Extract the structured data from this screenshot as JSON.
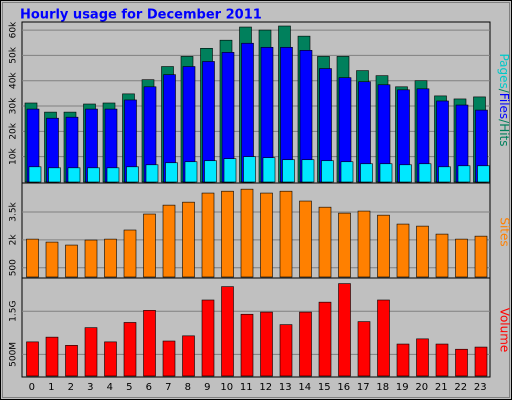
{
  "chart_data": [
    {
      "type": "bar",
      "title": "Hourly usage for December 2011",
      "categories": [
        "0",
        "1",
        "2",
        "3",
        "4",
        "5",
        "6",
        "7",
        "8",
        "9",
        "10",
        "11",
        "12",
        "13",
        "14",
        "15",
        "16",
        "17",
        "18",
        "19",
        "20",
        "21",
        "22",
        "23"
      ],
      "series": [
        {
          "name": "Hits",
          "color": "#00805c",
          "values": [
            31200,
            27600,
            27600,
            30800,
            31200,
            34800,
            40400,
            45600,
            49600,
            52800,
            56000,
            61200,
            60000,
            61600,
            57600,
            49600,
            49600,
            44000,
            42000,
            37600,
            40000,
            34000,
            32800,
            33600
          ]
        },
        {
          "name": "Files",
          "color": "#0000ff",
          "values": [
            28800,
            25200,
            25600,
            28800,
            28800,
            32400,
            37600,
            42400,
            45600,
            47600,
            51200,
            54800,
            53200,
            53200,
            52000,
            44800,
            41200,
            39600,
            38400,
            36400,
            36800,
            32000,
            30400,
            28400
          ]
        },
        {
          "name": "Pages",
          "color": "#00e8ff",
          "values": [
            6000,
            5600,
            5600,
            5600,
            5600,
            6000,
            6800,
            7600,
            8000,
            8400,
            9200,
            10000,
            9600,
            8800,
            8800,
            8400,
            8000,
            7200,
            7200,
            6800,
            7200,
            6000,
            6400,
            6400
          ]
        }
      ],
      "separator": "/",
      "ylim": [
        0,
        62000
      ],
      "yticks": [
        {
          "value": 10000,
          "label": "10k"
        },
        {
          "value": 20000,
          "label": "20k"
        },
        {
          "value": 30000,
          "label": "30k"
        },
        {
          "value": 40000,
          "label": "40k"
        },
        {
          "value": 50000,
          "label": "50k"
        },
        {
          "value": 60000,
          "label": "60k"
        }
      ],
      "grid": true
    },
    {
      "type": "bar",
      "series": [
        {
          "name": "Sites",
          "color": "#ff8000",
          "values": [
            2040,
            1880,
            1720,
            1990,
            2040,
            2530,
            3390,
            3870,
            4030,
            4520,
            4620,
            4730,
            4520,
            4620,
            4090,
            3760,
            3440,
            3550,
            3330,
            2850,
            2740,
            2310,
            2040,
            2200
          ]
        }
      ],
      "ylim": [
        0,
        4900
      ],
      "yticks": [
        500,
        {
          "value": 2000,
          "label": "2k"
        },
        {
          "value": 3500,
          "label": "3.5k"
        }
      ],
      "grid": true
    },
    {
      "type": "bar",
      "series": [
        {
          "name": "Volume",
          "color": "#ff0000",
          "values": [
            0.79,
            0.9,
            0.71,
            1.12,
            0.79,
            1.24,
            1.52,
            0.81,
            0.93,
            1.76,
            2.07,
            1.43,
            1.48,
            1.19,
            1.48,
            1.71,
            2.14,
            1.26,
            1.76,
            0.74,
            0.86,
            0.74,
            0.62,
            0.67
          ]
        }
      ],
      "ylim": [
        0,
        2.2
      ],
      "yticks": [
        {
          "value": 0.5,
          "label": "500M"
        },
        {
          "value": 1.5,
          "label": "1.5G"
        }
      ],
      "grid": true
    }
  ]
}
